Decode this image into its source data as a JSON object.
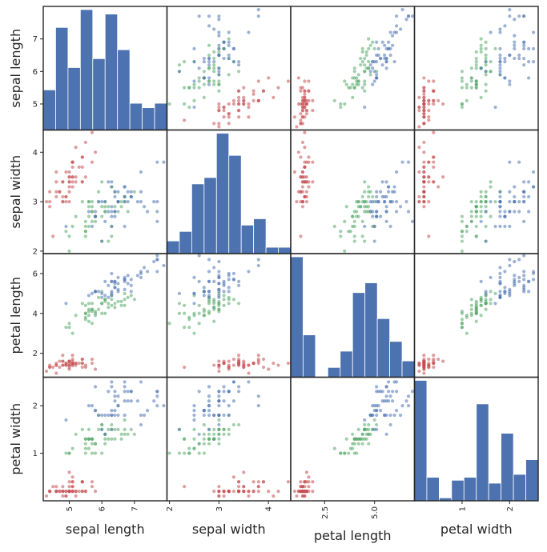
{
  "chart_data": {
    "type": "scatter_matrix",
    "title": "",
    "variables": [
      "sepal length",
      "sepal width",
      "petal length",
      "petal width"
    ],
    "ranges": [
      [
        4.2,
        8.0
      ],
      [
        1.95,
        4.45
      ],
      [
        0.8,
        7.0
      ],
      [
        0.0,
        2.6
      ]
    ],
    "ticks": [
      [
        {
          "v": 5,
          "label": "5"
        },
        {
          "v": 6,
          "label": "6"
        },
        {
          "v": 7,
          "label": "7"
        }
      ],
      [
        {
          "v": 2,
          "label": "2"
        },
        {
          "v": 3,
          "label": "3"
        },
        {
          "v": 4,
          "label": "4"
        }
      ],
      [
        {
          "v": 2,
          "label": "2"
        },
        {
          "v": 4,
          "label": "4"
        },
        {
          "v": 6,
          "label": "6"
        }
      ],
      [
        {
          "v": 1,
          "label": "1"
        },
        {
          "v": 2,
          "label": "2"
        }
      ]
    ],
    "bottom_ticks": [
      [
        {
          "v": 5,
          "label": "5"
        },
        {
          "v": 6,
          "label": "6"
        },
        {
          "v": 7,
          "label": "7"
        }
      ],
      [
        {
          "v": 2,
          "label": "2"
        },
        {
          "v": 3,
          "label": "3"
        },
        {
          "v": 4,
          "label": "4"
        }
      ],
      [
        {
          "v": 2.5,
          "label": "2.5"
        },
        {
          "v": 5.0,
          "label": "5.0"
        }
      ],
      [
        {
          "v": 1,
          "label": "1"
        },
        {
          "v": 2,
          "label": "2"
        }
      ]
    ],
    "bar_color": "#4c72b0",
    "point_colors": {
      "setosa": "#c44e52",
      "versicolor": "#55a868",
      "virginica": "#4c72b0"
    },
    "histograms": [
      {
        "bins": [
          4.3,
          4.66,
          5.02,
          5.38,
          5.74,
          6.1,
          6.46,
          6.82,
          7.18,
          7.54,
          7.9
        ],
        "counts": [
          9,
          23,
          14,
          27,
          16,
          26,
          18,
          6,
          5,
          6
        ]
      },
      {
        "bins": [
          2.0,
          2.24,
          2.48,
          2.72,
          2.96,
          3.2,
          3.44,
          3.68,
          3.92,
          4.16,
          4.4
        ],
        "counts": [
          4,
          7,
          22,
          24,
          38,
          31,
          9,
          11,
          2,
          2
        ]
      },
      {
        "bins": [
          1.0,
          1.59,
          2.18,
          2.77,
          3.36,
          3.95,
          4.54,
          5.13,
          5.72,
          6.31,
          6.9
        ],
        "counts": [
          37,
          13,
          0,
          3,
          8,
          26,
          29,
          18,
          11,
          5
        ]
      },
      {
        "bins": [
          0.1,
          0.34,
          0.58,
          0.82,
          1.06,
          1.3,
          1.54,
          1.78,
          2.02,
          2.26,
          2.5
        ],
        "counts": [
          41,
          8,
          1,
          7,
          8,
          33,
          6,
          23,
          9,
          14
        ]
      }
    ],
    "points": [
      [
        5.1,
        3.5,
        1.4,
        0.2,
        0
      ],
      [
        4.9,
        3.0,
        1.4,
        0.2,
        0
      ],
      [
        4.7,
        3.2,
        1.3,
        0.2,
        0
      ],
      [
        4.6,
        3.1,
        1.5,
        0.2,
        0
      ],
      [
        5.0,
        3.6,
        1.4,
        0.2,
        0
      ],
      [
        5.4,
        3.9,
        1.7,
        0.4,
        0
      ],
      [
        4.6,
        3.4,
        1.4,
        0.3,
        0
      ],
      [
        5.0,
        3.4,
        1.5,
        0.2,
        0
      ],
      [
        4.4,
        2.9,
        1.4,
        0.2,
        0
      ],
      [
        4.9,
        3.1,
        1.5,
        0.1,
        0
      ],
      [
        5.4,
        3.7,
        1.5,
        0.2,
        0
      ],
      [
        4.8,
        3.4,
        1.6,
        0.2,
        0
      ],
      [
        4.8,
        3.0,
        1.4,
        0.1,
        0
      ],
      [
        4.3,
        3.0,
        1.1,
        0.1,
        0
      ],
      [
        5.8,
        4.0,
        1.2,
        0.2,
        0
      ],
      [
        5.7,
        4.4,
        1.5,
        0.4,
        0
      ],
      [
        5.4,
        3.9,
        1.3,
        0.4,
        0
      ],
      [
        5.1,
        3.5,
        1.4,
        0.3,
        0
      ],
      [
        5.7,
        3.8,
        1.7,
        0.3,
        0
      ],
      [
        5.1,
        3.8,
        1.5,
        0.3,
        0
      ],
      [
        5.4,
        3.4,
        1.7,
        0.2,
        0
      ],
      [
        5.1,
        3.7,
        1.5,
        0.4,
        0
      ],
      [
        4.6,
        3.6,
        1.0,
        0.2,
        0
      ],
      [
        5.1,
        3.3,
        1.7,
        0.5,
        0
      ],
      [
        4.8,
        3.4,
        1.9,
        0.2,
        0
      ],
      [
        5.0,
        3.0,
        1.6,
        0.2,
        0
      ],
      [
        5.0,
        3.4,
        1.6,
        0.4,
        0
      ],
      [
        5.2,
        3.5,
        1.5,
        0.2,
        0
      ],
      [
        5.2,
        3.4,
        1.4,
        0.2,
        0
      ],
      [
        4.7,
        3.2,
        1.6,
        0.2,
        0
      ],
      [
        4.8,
        3.1,
        1.6,
        0.2,
        0
      ],
      [
        5.4,
        3.4,
        1.5,
        0.4,
        0
      ],
      [
        5.2,
        4.1,
        1.5,
        0.1,
        0
      ],
      [
        5.5,
        4.2,
        1.4,
        0.2,
        0
      ],
      [
        4.9,
        3.1,
        1.5,
        0.2,
        0
      ],
      [
        5.0,
        3.2,
        1.2,
        0.2,
        0
      ],
      [
        5.5,
        3.5,
        1.3,
        0.2,
        0
      ],
      [
        4.9,
        3.6,
        1.4,
        0.1,
        0
      ],
      [
        4.4,
        3.0,
        1.3,
        0.2,
        0
      ],
      [
        5.1,
        3.4,
        1.5,
        0.2,
        0
      ],
      [
        5.0,
        3.5,
        1.3,
        0.3,
        0
      ],
      [
        4.5,
        2.3,
        1.3,
        0.3,
        0
      ],
      [
        4.4,
        3.2,
        1.3,
        0.2,
        0
      ],
      [
        5.0,
        3.5,
        1.6,
        0.6,
        0
      ],
      [
        5.1,
        3.8,
        1.9,
        0.4,
        0
      ],
      [
        4.8,
        3.0,
        1.4,
        0.3,
        0
      ],
      [
        5.1,
        3.8,
        1.6,
        0.2,
        0
      ],
      [
        4.6,
        3.2,
        1.4,
        0.2,
        0
      ],
      [
        5.3,
        3.7,
        1.5,
        0.2,
        0
      ],
      [
        5.0,
        3.3,
        1.4,
        0.2,
        0
      ],
      [
        7.0,
        3.2,
        4.7,
        1.4,
        1
      ],
      [
        6.4,
        3.2,
        4.5,
        1.5,
        1
      ],
      [
        6.9,
        3.1,
        4.9,
        1.5,
        1
      ],
      [
        5.5,
        2.3,
        4.0,
        1.3,
        1
      ],
      [
        6.5,
        2.8,
        4.6,
        1.5,
        1
      ],
      [
        5.7,
        2.8,
        4.5,
        1.3,
        1
      ],
      [
        6.3,
        3.3,
        4.7,
        1.6,
        1
      ],
      [
        4.9,
        2.4,
        3.3,
        1.0,
        1
      ],
      [
        6.6,
        2.9,
        4.6,
        1.3,
        1
      ],
      [
        5.2,
        2.7,
        3.9,
        1.4,
        1
      ],
      [
        5.0,
        2.0,
        3.5,
        1.0,
        1
      ],
      [
        5.9,
        3.0,
        4.2,
        1.5,
        1
      ],
      [
        6.0,
        2.2,
        4.0,
        1.0,
        1
      ],
      [
        6.1,
        2.9,
        4.7,
        1.4,
        1
      ],
      [
        5.6,
        2.9,
        3.6,
        1.3,
        1
      ],
      [
        6.7,
        3.1,
        4.4,
        1.4,
        1
      ],
      [
        5.6,
        3.0,
        4.5,
        1.5,
        1
      ],
      [
        5.8,
        2.7,
        4.1,
        1.0,
        1
      ],
      [
        6.2,
        2.2,
        4.5,
        1.5,
        1
      ],
      [
        5.6,
        2.5,
        3.9,
        1.1,
        1
      ],
      [
        5.9,
        3.2,
        4.8,
        1.8,
        1
      ],
      [
        6.1,
        2.8,
        4.0,
        1.3,
        1
      ],
      [
        6.3,
        2.5,
        4.9,
        1.5,
        1
      ],
      [
        6.1,
        2.8,
        4.7,
        1.2,
        1
      ],
      [
        6.4,
        2.9,
        4.3,
        1.3,
        1
      ],
      [
        6.6,
        3.0,
        4.4,
        1.4,
        1
      ],
      [
        6.8,
        2.8,
        4.8,
        1.4,
        1
      ],
      [
        6.7,
        3.0,
        5.0,
        1.7,
        1
      ],
      [
        6.0,
        2.9,
        4.5,
        1.5,
        1
      ],
      [
        5.7,
        2.6,
        3.5,
        1.0,
        1
      ],
      [
        5.5,
        2.4,
        3.8,
        1.1,
        1
      ],
      [
        5.5,
        2.4,
        3.7,
        1.0,
        1
      ],
      [
        5.8,
        2.7,
        3.9,
        1.2,
        1
      ],
      [
        6.0,
        2.7,
        5.1,
        1.6,
        1
      ],
      [
        5.4,
        3.0,
        4.5,
        1.5,
        1
      ],
      [
        6.0,
        3.4,
        4.5,
        1.6,
        1
      ],
      [
        6.7,
        3.1,
        4.7,
        1.5,
        1
      ],
      [
        6.3,
        2.3,
        4.4,
        1.3,
        1
      ],
      [
        5.6,
        3.0,
        4.1,
        1.3,
        1
      ],
      [
        5.5,
        2.5,
        4.0,
        1.3,
        1
      ],
      [
        5.5,
        2.6,
        4.4,
        1.2,
        1
      ],
      [
        6.1,
        3.0,
        4.6,
        1.4,
        1
      ],
      [
        5.8,
        2.6,
        4.0,
        1.2,
        1
      ],
      [
        5.0,
        2.3,
        3.3,
        1.0,
        1
      ],
      [
        5.6,
        2.7,
        4.2,
        1.3,
        1
      ],
      [
        5.7,
        3.0,
        4.2,
        1.2,
        1
      ],
      [
        5.7,
        2.9,
        4.2,
        1.3,
        1
      ],
      [
        6.2,
        2.9,
        4.3,
        1.3,
        1
      ],
      [
        5.1,
        2.5,
        3.0,
        1.1,
        1
      ],
      [
        5.7,
        2.8,
        4.1,
        1.3,
        1
      ],
      [
        6.3,
        3.3,
        6.0,
        2.5,
        2
      ],
      [
        5.8,
        2.7,
        5.1,
        1.9,
        2
      ],
      [
        7.1,
        3.0,
        5.9,
        2.1,
        2
      ],
      [
        6.3,
        2.9,
        5.6,
        1.8,
        2
      ],
      [
        6.5,
        3.0,
        5.8,
        2.2,
        2
      ],
      [
        7.6,
        3.0,
        6.6,
        2.1,
        2
      ],
      [
        4.9,
        2.5,
        4.5,
        1.7,
        2
      ],
      [
        7.3,
        2.9,
        6.3,
        1.8,
        2
      ],
      [
        6.7,
        2.5,
        5.8,
        1.8,
        2
      ],
      [
        7.2,
        3.6,
        6.1,
        2.5,
        2
      ],
      [
        6.5,
        3.2,
        5.1,
        2.0,
        2
      ],
      [
        6.4,
        2.7,
        5.3,
        1.9,
        2
      ],
      [
        6.8,
        3.0,
        5.5,
        2.1,
        2
      ],
      [
        5.7,
        2.5,
        5.0,
        2.0,
        2
      ],
      [
        5.8,
        2.8,
        5.1,
        2.4,
        2
      ],
      [
        6.4,
        3.2,
        5.3,
        2.3,
        2
      ],
      [
        6.5,
        3.0,
        5.5,
        1.8,
        2
      ],
      [
        7.7,
        3.8,
        6.7,
        2.2,
        2
      ],
      [
        7.7,
        2.6,
        6.9,
        2.3,
        2
      ],
      [
        6.0,
        2.2,
        5.0,
        1.5,
        2
      ],
      [
        6.9,
        3.2,
        5.7,
        2.3,
        2
      ],
      [
        5.6,
        2.8,
        4.9,
        2.0,
        2
      ],
      [
        7.7,
        2.8,
        6.7,
        2.0,
        2
      ],
      [
        6.3,
        2.7,
        4.9,
        1.8,
        2
      ],
      [
        6.7,
        3.3,
        5.7,
        2.1,
        2
      ],
      [
        7.2,
        3.2,
        6.0,
        1.8,
        2
      ],
      [
        6.2,
        2.8,
        4.8,
        1.8,
        2
      ],
      [
        6.1,
        3.0,
        4.9,
        1.8,
        2
      ],
      [
        6.4,
        2.8,
        5.6,
        2.1,
        2
      ],
      [
        7.2,
        3.0,
        5.8,
        1.6,
        2
      ],
      [
        7.4,
        2.8,
        6.1,
        1.9,
        2
      ],
      [
        7.9,
        3.8,
        6.4,
        2.0,
        2
      ],
      [
        6.4,
        2.8,
        5.6,
        2.2,
        2
      ],
      [
        6.3,
        2.8,
        5.1,
        1.5,
        2
      ],
      [
        6.1,
        2.6,
        5.6,
        1.4,
        2
      ],
      [
        7.7,
        3.0,
        6.1,
        2.3,
        2
      ],
      [
        6.3,
        3.4,
        5.6,
        2.4,
        2
      ],
      [
        6.4,
        3.1,
        5.5,
        1.8,
        2
      ],
      [
        6.0,
        3.0,
        4.8,
        1.8,
        2
      ],
      [
        6.9,
        3.1,
        5.4,
        2.1,
        2
      ],
      [
        6.7,
        3.1,
        5.6,
        2.4,
        2
      ],
      [
        6.9,
        3.1,
        5.1,
        2.3,
        2
      ],
      [
        5.8,
        2.7,
        5.1,
        1.9,
        2
      ],
      [
        6.8,
        3.2,
        5.9,
        2.3,
        2
      ],
      [
        6.7,
        3.3,
        5.7,
        2.5,
        2
      ],
      [
        6.7,
        3.0,
        5.2,
        2.3,
        2
      ],
      [
        6.3,
        2.5,
        5.0,
        1.9,
        2
      ],
      [
        6.5,
        3.0,
        5.2,
        2.0,
        2
      ],
      [
        6.2,
        3.4,
        5.4,
        2.3,
        2
      ],
      [
        5.9,
        3.0,
        5.1,
        1.8,
        2
      ]
    ]
  }
}
